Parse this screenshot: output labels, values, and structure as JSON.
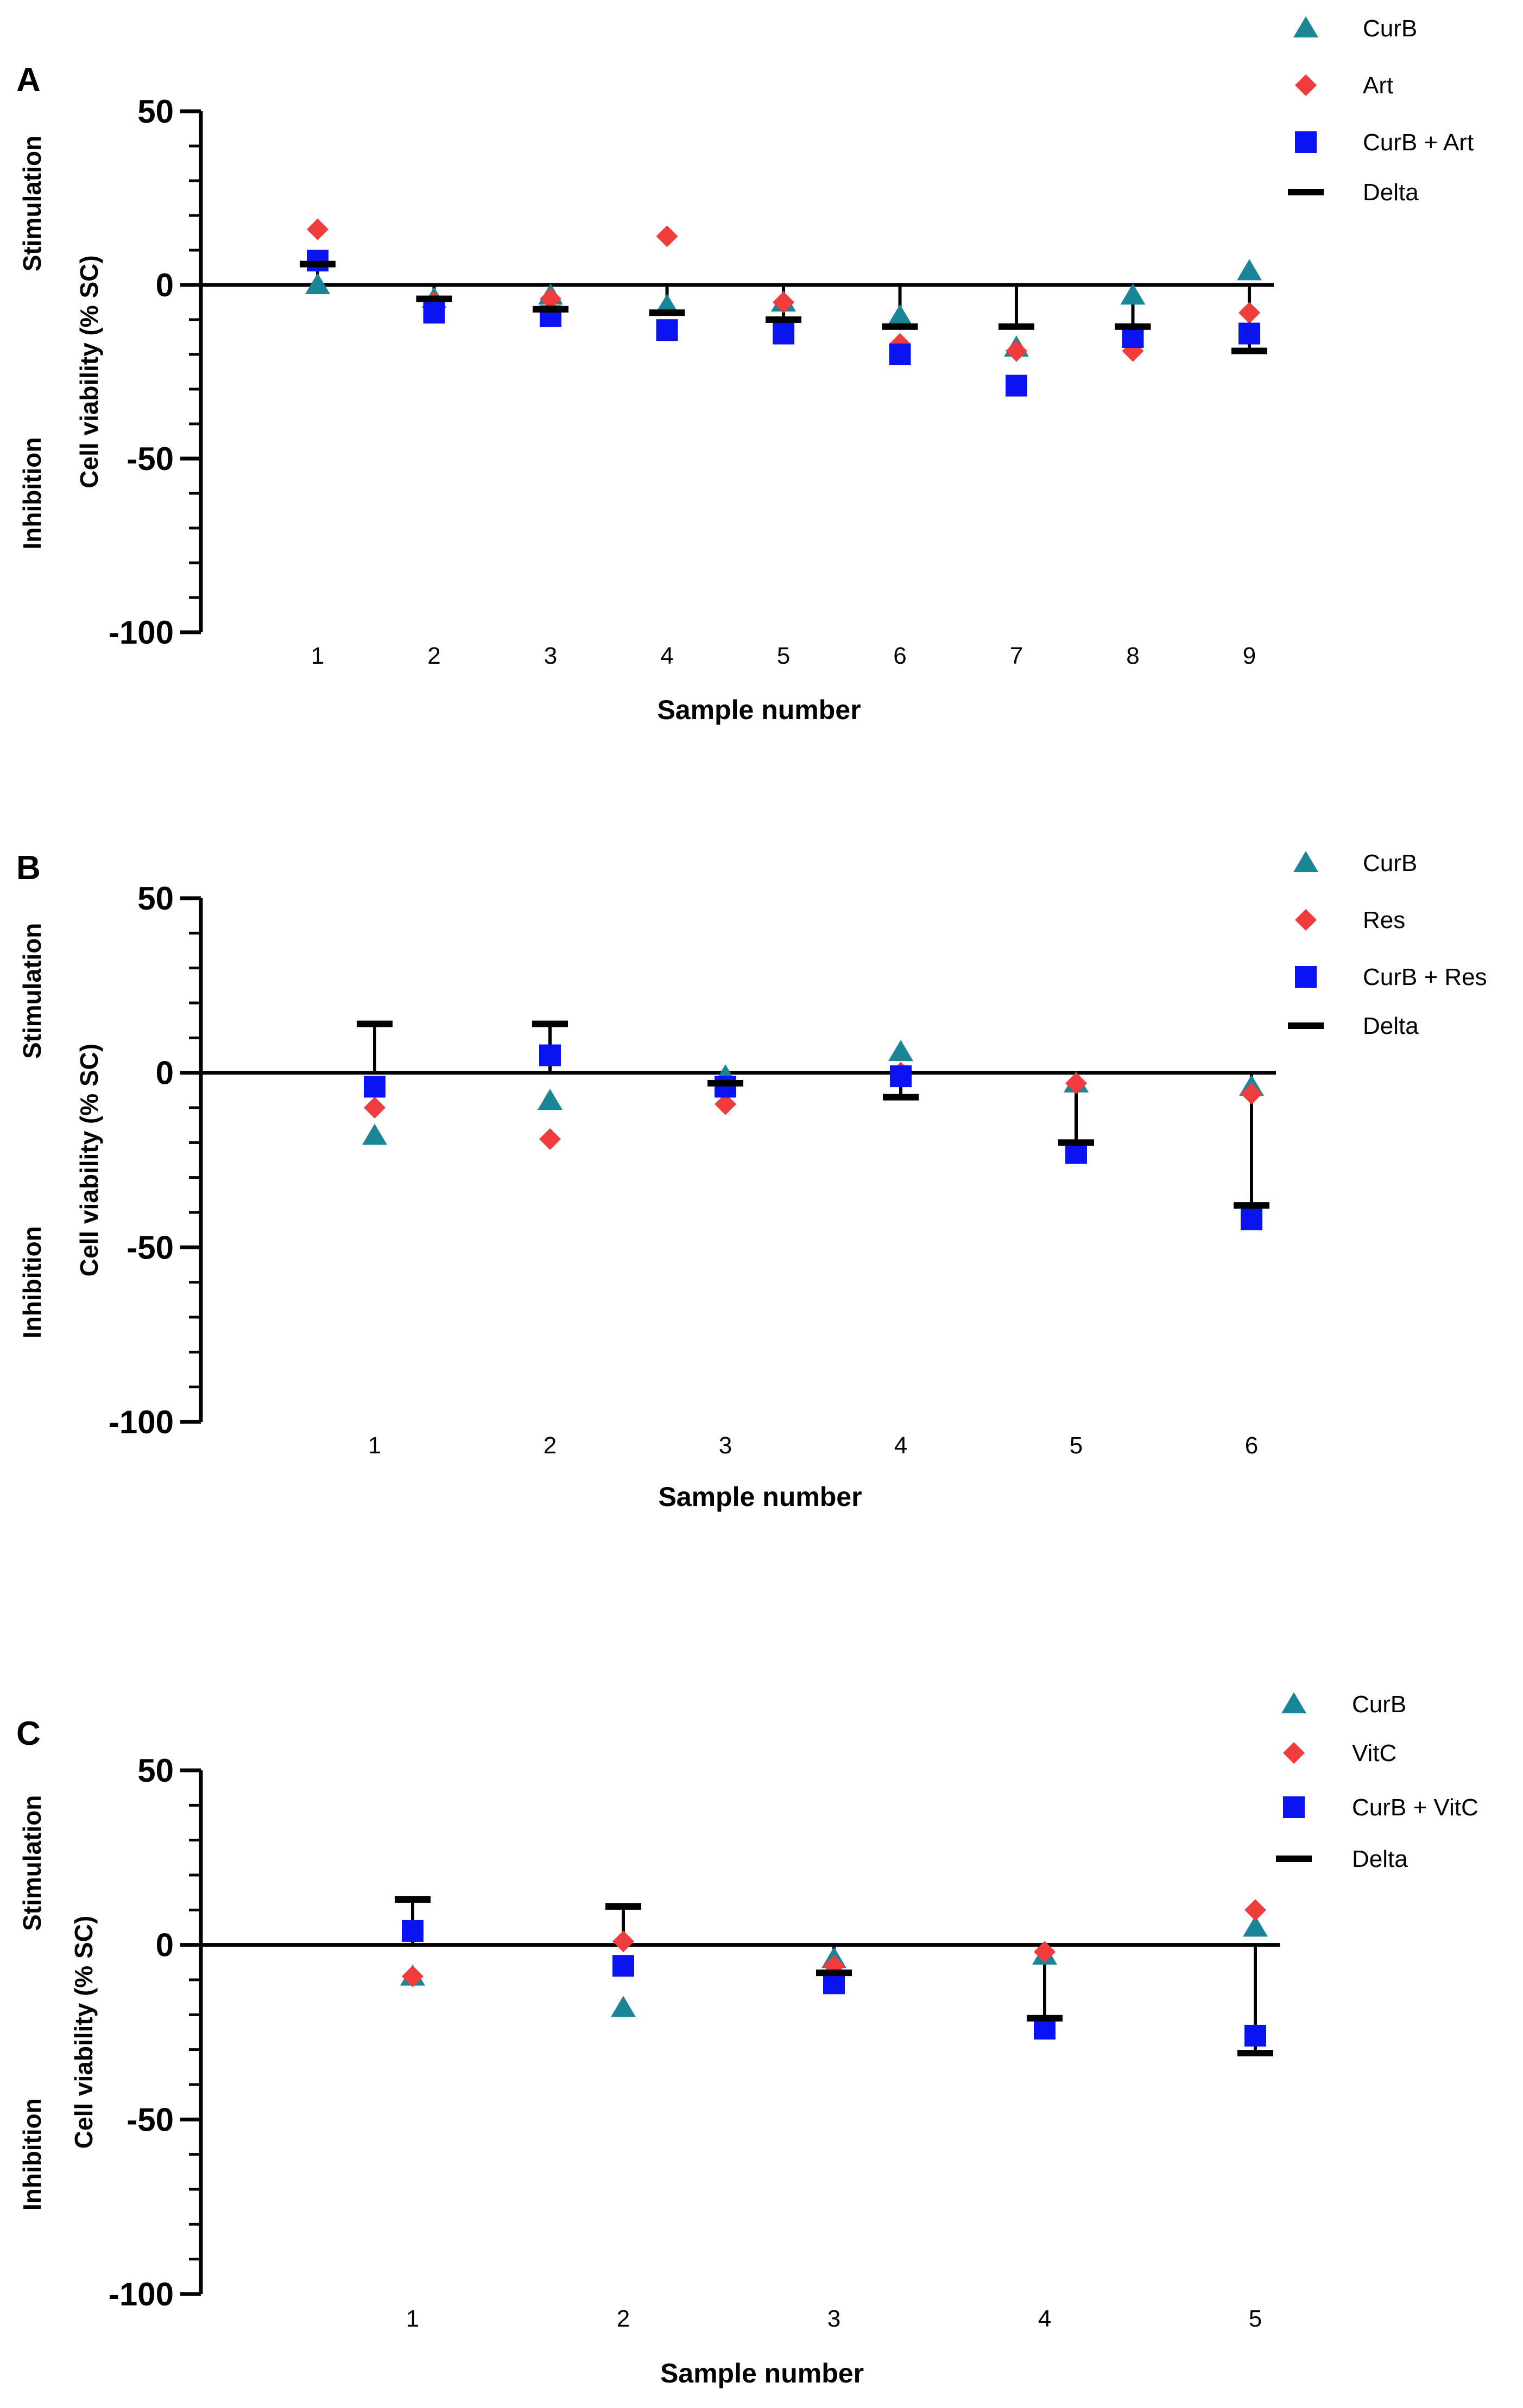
{
  "colors": {
    "curb": "#1a8597",
    "partner": "#f03c3c",
    "combo": "#0a14f0",
    "delta": "#000000",
    "axis": "#000000"
  },
  "chart_data": [
    {
      "panel": "A",
      "type": "scatter",
      "ylabel": "Cell viability (% SC)",
      "xlabel": "Sample number",
      "side_top": "Stimulation",
      "side_bottom": "Inhibition",
      "ylim": [
        -100,
        50
      ],
      "yticks": [
        50,
        0,
        -50,
        -100
      ],
      "categories": [
        "1",
        "2",
        "3",
        "4",
        "5",
        "6",
        "7",
        "8",
        "9"
      ],
      "series": [
        {
          "name": "CurB",
          "marker": "triangle",
          "values": [
            0,
            -4,
            -3,
            -6,
            -5,
            -9,
            -18,
            -3,
            4
          ]
        },
        {
          "name": "Art",
          "marker": "diamond",
          "values": [
            16,
            -5,
            -4,
            14,
            -5,
            -17,
            -19,
            -19,
            -8
          ]
        },
        {
          "name": "CurB + Art",
          "marker": "square",
          "values": [
            7,
            -8,
            -9,
            -13,
            -14,
            -20,
            -29,
            -15,
            -14
          ]
        },
        {
          "name": "Delta",
          "marker": "dash",
          "values": [
            6,
            -4,
            -7,
            -8,
            -10,
            -12,
            -12,
            -12,
            -19
          ]
        }
      ]
    },
    {
      "panel": "B",
      "type": "scatter",
      "ylabel": "Cell viability (% SC)",
      "xlabel": "Sample number",
      "side_top": "Stimulation",
      "side_bottom": "Inhibition",
      "ylim": [
        -100,
        50
      ],
      "yticks": [
        50,
        0,
        -50,
        -100
      ],
      "categories": [
        "1",
        "2",
        "3",
        "4",
        "5",
        "6"
      ],
      "series": [
        {
          "name": "CurB",
          "marker": "triangle",
          "values": [
            -18,
            -8,
            -1,
            6,
            -3,
            -4
          ]
        },
        {
          "name": "Res",
          "marker": "diamond",
          "values": [
            -10,
            -19,
            -9,
            0,
            -3,
            -6
          ]
        },
        {
          "name": "CurB + Res",
          "marker": "square",
          "values": [
            -4,
            5,
            -4,
            -1,
            -23,
            -42
          ]
        },
        {
          "name": "Delta",
          "marker": "dash",
          "values": [
            14,
            14,
            -3,
            -7,
            -20,
            -38
          ]
        }
      ]
    },
    {
      "panel": "C",
      "type": "scatter",
      "ylabel": "Cell viability (% SC)",
      "xlabel": "Sample number",
      "side_top": "Stimulation",
      "side_bottom": "Inhibition",
      "ylim": [
        -100,
        50
      ],
      "yticks": [
        50,
        0,
        -50,
        -100
      ],
      "categories": [
        "1",
        "2",
        "3",
        "4",
        "5"
      ],
      "series": [
        {
          "name": "CurB",
          "marker": "triangle",
          "values": [
            -9,
            -18,
            -4,
            -3,
            5
          ]
        },
        {
          "name": "VitC",
          "marker": "diamond",
          "values": [
            -9,
            1,
            -6,
            -2,
            10
          ]
        },
        {
          "name": "CurB + VitC",
          "marker": "square",
          "values": [
            4,
            -6,
            -11,
            -24,
            -26
          ]
        },
        {
          "name": "Delta",
          "marker": "dash",
          "values": [
            13,
            11,
            -8,
            -21,
            -31
          ]
        }
      ]
    }
  ]
}
